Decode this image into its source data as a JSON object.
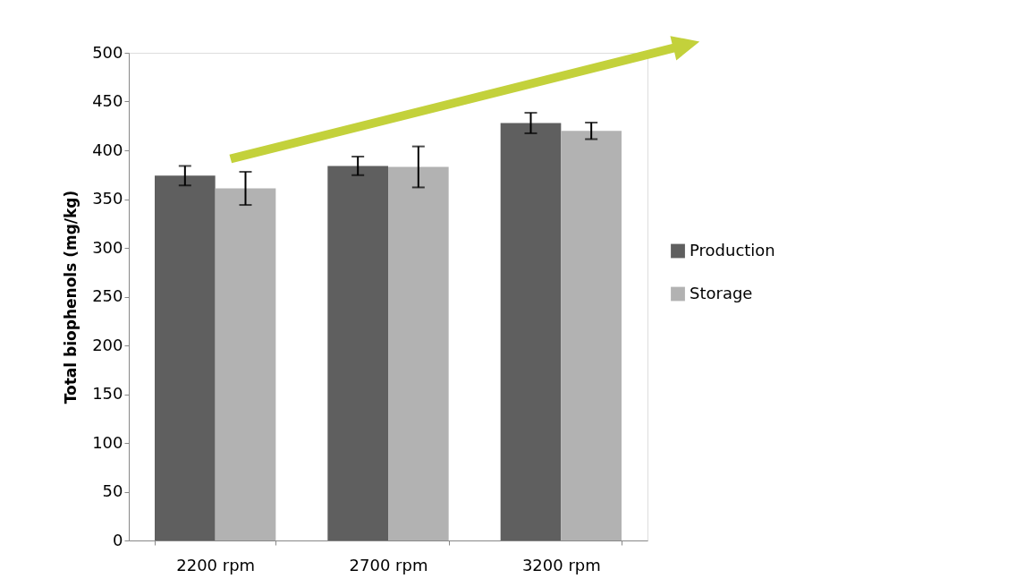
{
  "chart_data": {
    "type": "bar",
    "ylabel": "Total biophenols  (mg/kg)",
    "categories": [
      "2200 rpm",
      "2700 rpm",
      "3200 rpm"
    ],
    "series": [
      {
        "name": "Production",
        "color": "#5f5f5f",
        "values": [
          374,
          384,
          428
        ],
        "errors": [
          10,
          9.5,
          10.5
        ]
      },
      {
        "name": "Storage",
        "color": "#b2b2b2",
        "values": [
          361,
          383,
          420
        ],
        "errors": [
          17,
          21,
          8.5
        ]
      }
    ],
    "ylim": [
      0,
      500
    ],
    "yticks": [
      0,
      50,
      100,
      150,
      200,
      250,
      300,
      350,
      400,
      450,
      500
    ],
    "grid": false,
    "legend": "right"
  }
}
